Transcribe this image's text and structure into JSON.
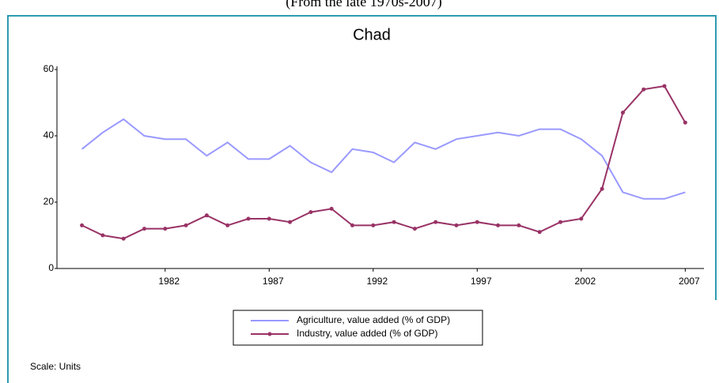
{
  "chart_data": {
    "type": "line",
    "subtitle": "(From the late 1970s-2007)",
    "title": "Chad",
    "note": "Scale: Units",
    "x": [
      1978,
      1979,
      1980,
      1981,
      1982,
      1983,
      1984,
      1985,
      1986,
      1987,
      1988,
      1989,
      1990,
      1991,
      1992,
      1993,
      1994,
      1995,
      1996,
      1997,
      1998,
      1999,
      2000,
      2001,
      2002,
      2003,
      2004,
      2005,
      2006,
      2007
    ],
    "series": [
      {
        "name": "Agriculture, value added (% of GDP)",
        "color": "#9999ff",
        "markers": false,
        "values": [
          36,
          41,
          45,
          40,
          39,
          39,
          34,
          38,
          33,
          33,
          37,
          32,
          29,
          36,
          35,
          32,
          38,
          36,
          39,
          40,
          41,
          40,
          42,
          42,
          39,
          34,
          23,
          21,
          21,
          23
        ]
      },
      {
        "name": "Industry, value added (% of GDP)",
        "color": "#993366",
        "markers": true,
        "values": [
          13,
          10,
          9,
          12,
          12,
          13,
          16,
          13,
          15,
          15,
          14,
          17,
          18,
          13,
          13,
          14,
          12,
          14,
          13,
          14,
          13,
          13,
          11,
          14,
          15,
          24,
          47,
          54,
          55,
          44
        ]
      }
    ],
    "xlim": [
      1976.8,
      2007.9
    ],
    "xticks": [
      1982,
      1987,
      1992,
      1997,
      2002,
      2007
    ],
    "ylim": [
      0,
      60
    ],
    "yticks": [
      0,
      20,
      40,
      60
    ],
    "grid": false,
    "legend": "bottom"
  }
}
